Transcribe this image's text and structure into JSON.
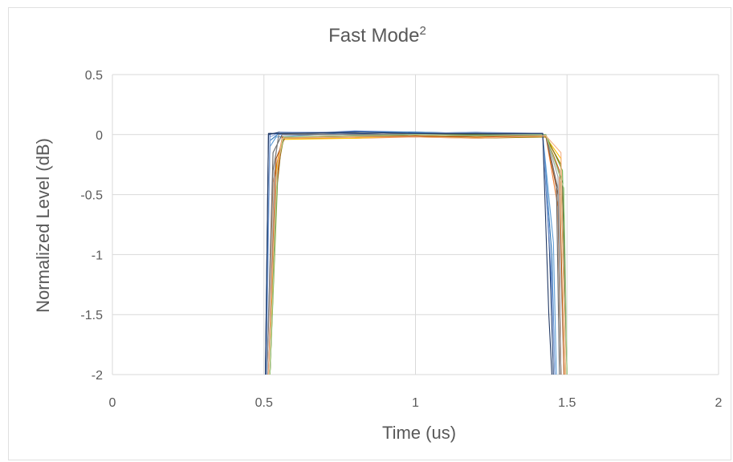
{
  "chart_data": {
    "type": "line",
    "title": "Fast Mode",
    "title_superscript": "2",
    "xlabel": "Time (us)",
    "ylabel": "Normalized Level (dB)",
    "xlim": [
      0,
      2
    ],
    "ylim": [
      -2,
      0.5
    ],
    "x_ticks": [
      "0",
      "0.5",
      "1",
      "1.5",
      "2"
    ],
    "y_ticks": [
      "0.5",
      "0",
      "-0.5",
      "-1",
      "-1.5",
      "-2"
    ],
    "grid": true,
    "legend": "none",
    "note": "",
    "series": [
      {
        "color": "#4472c4",
        "points": [
          [
            0.505,
            -2
          ],
          [
            0.52,
            0.01
          ],
          [
            0.56,
            0.0
          ],
          [
            0.8,
            0.03
          ],
          [
            1.0,
            0.02
          ],
          [
            1.2,
            0.01
          ],
          [
            1.42,
            0.01
          ],
          [
            1.45,
            -1.3
          ],
          [
            1.46,
            -2
          ]
        ]
      },
      {
        "color": "#ed7d31",
        "points": [
          [
            0.51,
            -2
          ],
          [
            0.53,
            -0.4
          ],
          [
            0.56,
            -0.03
          ],
          [
            0.8,
            -0.03
          ],
          [
            1.0,
            -0.02
          ],
          [
            1.2,
            -0.03
          ],
          [
            1.43,
            -0.01
          ],
          [
            1.47,
            -0.6
          ],
          [
            1.48,
            -2
          ]
        ]
      },
      {
        "color": "#a5a5a5",
        "points": [
          [
            0.515,
            -2
          ],
          [
            0.535,
            -0.25
          ],
          [
            0.55,
            0.02
          ],
          [
            0.8,
            0.01
          ],
          [
            1.0,
            0.0
          ],
          [
            1.2,
            0.0
          ],
          [
            1.43,
            0.0
          ],
          [
            1.47,
            -0.35
          ],
          [
            1.49,
            -2
          ]
        ]
      },
      {
        "color": "#ffc000",
        "points": [
          [
            0.52,
            -2
          ],
          [
            0.54,
            -0.3
          ],
          [
            0.56,
            -0.04
          ],
          [
            0.8,
            -0.03
          ],
          [
            1.0,
            -0.01
          ],
          [
            1.2,
            -0.02
          ],
          [
            1.43,
            -0.02
          ],
          [
            1.48,
            -0.2
          ],
          [
            1.495,
            -2
          ]
        ]
      },
      {
        "color": "#5b9bd5",
        "points": [
          [
            0.505,
            -2
          ],
          [
            0.52,
            -0.1
          ],
          [
            0.54,
            -0.02
          ],
          [
            0.8,
            0.02
          ],
          [
            1.0,
            0.01
          ],
          [
            1.2,
            0.02
          ],
          [
            1.42,
            0.0
          ],
          [
            1.455,
            -0.9
          ],
          [
            1.465,
            -2
          ]
        ]
      },
      {
        "color": "#70ad47",
        "points": [
          [
            0.52,
            -2
          ],
          [
            0.545,
            -0.4
          ],
          [
            0.56,
            -0.03
          ],
          [
            0.8,
            -0.02
          ],
          [
            1.0,
            0.0
          ],
          [
            1.2,
            -0.01
          ],
          [
            1.43,
            0.0
          ],
          [
            1.485,
            -0.3
          ],
          [
            1.5,
            -2
          ]
        ]
      },
      {
        "color": "#264478",
        "points": [
          [
            0.505,
            -2
          ],
          [
            0.515,
            0.0
          ],
          [
            0.55,
            0.02
          ],
          [
            0.8,
            0.01
          ],
          [
            1.0,
            0.0
          ],
          [
            1.2,
            0.01
          ],
          [
            1.42,
            0.0
          ],
          [
            1.44,
            -0.8
          ],
          [
            1.455,
            -2
          ]
        ]
      },
      {
        "color": "#9e480e",
        "points": [
          [
            0.515,
            -2
          ],
          [
            0.54,
            -0.2
          ],
          [
            0.57,
            -0.02
          ],
          [
            0.8,
            -0.01
          ],
          [
            1.0,
            -0.02
          ],
          [
            1.2,
            -0.01
          ],
          [
            1.43,
            -0.01
          ],
          [
            1.47,
            -0.5
          ],
          [
            1.48,
            -2
          ]
        ]
      },
      {
        "color": "#636363",
        "points": [
          [
            0.51,
            -2
          ],
          [
            0.53,
            -0.15
          ],
          [
            0.56,
            0.0
          ],
          [
            0.8,
            0.0
          ],
          [
            1.0,
            0.01
          ],
          [
            1.2,
            0.0
          ],
          [
            1.43,
            0.0
          ],
          [
            1.465,
            -0.4
          ],
          [
            1.475,
            -2
          ]
        ]
      },
      {
        "color": "#997300",
        "points": [
          [
            0.52,
            -2
          ],
          [
            0.545,
            -0.3
          ],
          [
            0.565,
            -0.03
          ],
          [
            0.8,
            -0.02
          ],
          [
            1.0,
            -0.01
          ],
          [
            1.2,
            -0.03
          ],
          [
            1.43,
            -0.02
          ],
          [
            1.48,
            -0.25
          ],
          [
            1.495,
            -2
          ]
        ]
      },
      {
        "color": "#2e75b6",
        "points": [
          [
            0.505,
            -2
          ],
          [
            0.52,
            -0.05
          ],
          [
            0.55,
            0.01
          ],
          [
            0.8,
            0.02
          ],
          [
            1.0,
            0.02
          ],
          [
            1.2,
            0.01
          ],
          [
            1.42,
            0.0
          ],
          [
            1.45,
            -1.0
          ],
          [
            1.46,
            -2
          ]
        ]
      },
      {
        "color": "#43682b",
        "points": [
          [
            0.52,
            -2
          ],
          [
            0.54,
            -0.5
          ],
          [
            0.56,
            -0.02
          ],
          [
            0.8,
            -0.01
          ],
          [
            1.0,
            0.0
          ],
          [
            1.2,
            0.0
          ],
          [
            1.43,
            -0.01
          ],
          [
            1.485,
            -0.4
          ],
          [
            1.5,
            -2
          ]
        ]
      },
      {
        "color": "#7f7f7f",
        "points": [
          [
            0.51,
            -2
          ],
          [
            0.53,
            -0.3
          ],
          [
            0.55,
            0.01
          ],
          [
            0.8,
            0.0
          ],
          [
            1.0,
            0.0
          ],
          [
            1.2,
            0.01
          ],
          [
            1.43,
            0.0
          ],
          [
            1.47,
            -0.45
          ],
          [
            1.48,
            -2
          ]
        ]
      },
      {
        "color": "#c55a11",
        "points": [
          [
            0.515,
            -2
          ],
          [
            0.535,
            -0.6
          ],
          [
            0.56,
            -0.02
          ],
          [
            0.8,
            -0.02
          ],
          [
            1.0,
            -0.01
          ],
          [
            1.2,
            -0.02
          ],
          [
            1.43,
            -0.01
          ],
          [
            1.475,
            -0.3
          ],
          [
            1.49,
            -2
          ]
        ]
      },
      {
        "color": "#8faadc",
        "points": [
          [
            0.508,
            -2
          ],
          [
            0.52,
            -0.02
          ],
          [
            0.555,
            0.02
          ],
          [
            0.8,
            0.02
          ],
          [
            1.0,
            0.01
          ],
          [
            1.2,
            0.02
          ],
          [
            1.42,
            0.01
          ],
          [
            1.45,
            -1.2
          ],
          [
            1.46,
            -2
          ]
        ]
      },
      {
        "color": "#a9d18e",
        "points": [
          [
            0.52,
            -2
          ],
          [
            0.545,
            -0.25
          ],
          [
            0.565,
            -0.02
          ],
          [
            0.8,
            -0.01
          ],
          [
            1.0,
            0.0
          ],
          [
            1.2,
            -0.01
          ],
          [
            1.43,
            0.0
          ],
          [
            1.49,
            -0.45
          ],
          [
            1.5,
            -2
          ]
        ]
      },
      {
        "color": "#203864",
        "points": [
          [
            0.505,
            -2
          ],
          [
            0.515,
            0.01
          ],
          [
            0.55,
            0.01
          ],
          [
            0.8,
            0.02
          ],
          [
            1.0,
            0.01
          ],
          [
            1.2,
            0.01
          ],
          [
            1.42,
            0.01
          ],
          [
            1.44,
            -1.5
          ],
          [
            1.45,
            -2
          ]
        ]
      },
      {
        "color": "#f4b183",
        "points": [
          [
            0.515,
            -2
          ],
          [
            0.54,
            -0.35
          ],
          [
            0.56,
            -0.03
          ],
          [
            0.8,
            -0.02
          ],
          [
            1.0,
            -0.02
          ],
          [
            1.2,
            -0.03
          ],
          [
            1.43,
            -0.01
          ],
          [
            1.48,
            -0.15
          ],
          [
            1.495,
            -2
          ]
        ]
      }
    ]
  }
}
